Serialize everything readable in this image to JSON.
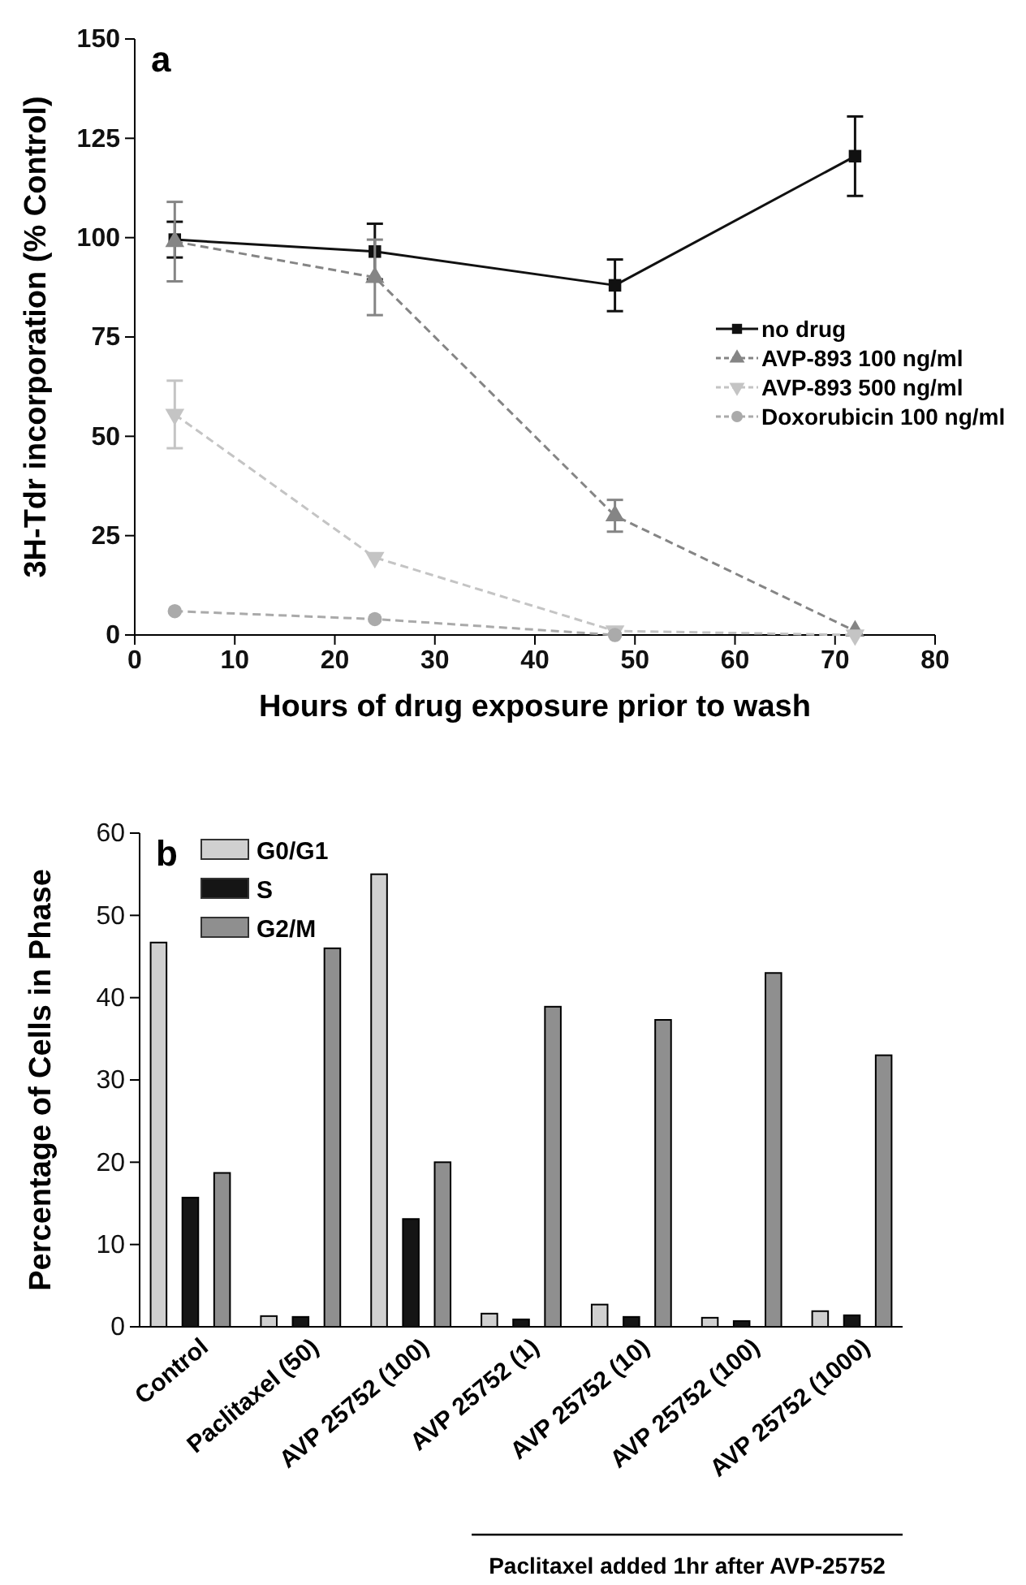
{
  "chart_data": [
    {
      "type": "line",
      "annotations": [
        "a"
      ],
      "xlabel": "Hours of drug exposure prior to wash",
      "ylabel": "3H-Tdr incorporation (% Control)",
      "xlim": [
        0,
        80
      ],
      "xticks": [
        0,
        10,
        20,
        30,
        40,
        50,
        60,
        70,
        80
      ],
      "ylim": [
        0,
        150
      ],
      "yticks": [
        0,
        25,
        50,
        75,
        100,
        125,
        150
      ],
      "grid": false,
      "legend": "right",
      "series": [
        {
          "name": "no drug",
          "color": "#111111",
          "marker": "square",
          "line_style": "solid",
          "x": [
            4,
            24,
            48,
            72
          ],
          "values": [
            99.5,
            96.5,
            88,
            120.5
          ],
          "errors": [
            4.5,
            7,
            6.5,
            10
          ]
        },
        {
          "name": "AVP-893 100 ng/ml",
          "color": "#858585",
          "marker": "triangle",
          "line_style": "dashed",
          "x": [
            4,
            24,
            48,
            72
          ],
          "values": [
            99,
            90,
            30,
            1
          ],
          "errors": [
            10,
            9.5,
            4,
            null
          ]
        },
        {
          "name": "AVP-893 500 ng/ml",
          "color": "#c4c4c4",
          "marker": "triangle-down",
          "line_style": "dashed",
          "x": [
            4,
            24,
            48,
            72
          ],
          "values": [
            55.5,
            19.5,
            1,
            0
          ],
          "errors": [
            8.5,
            null,
            null,
            null
          ]
        },
        {
          "name": "Doxorubicin 100 ng/ml",
          "color": "#aaaaaa",
          "marker": "circle",
          "line_style": "dashed",
          "x": [
            4,
            24,
            48
          ],
          "values": [
            6,
            4,
            0
          ]
        }
      ]
    },
    {
      "type": "bar",
      "annotations": [
        "b",
        "Paclitaxel added 1hr after AVP-25752"
      ],
      "ylabel": "Percentage of Cells in Phase",
      "ylim": [
        0,
        60
      ],
      "yticks": [
        0,
        10,
        20,
        30,
        40,
        50,
        60
      ],
      "grid": false,
      "legend": "top left",
      "categories": [
        "Control",
        "Paclitaxel (50)",
        "AVP 25752 (100)",
        "AVP 25752 (1)",
        "AVP 25752 (10)",
        "AVP 25752 (100)",
        "AVP 25752 (1000)"
      ],
      "series": [
        {
          "name": "G0/G1",
          "color": "#d0d0d0",
          "values": [
            46.7,
            1.3,
            55,
            1.6,
            2.7,
            1.1,
            1.9
          ]
        },
        {
          "name": "S",
          "color": "#151515",
          "values": [
            15.7,
            1.2,
            13.1,
            0.9,
            1.2,
            0.7,
            1.4
          ]
        },
        {
          "name": "G2/M",
          "color": "#8f8f8f",
          "values": [
            18.7,
            46,
            20,
            38.9,
            37.3,
            43,
            33
          ]
        }
      ]
    }
  ]
}
